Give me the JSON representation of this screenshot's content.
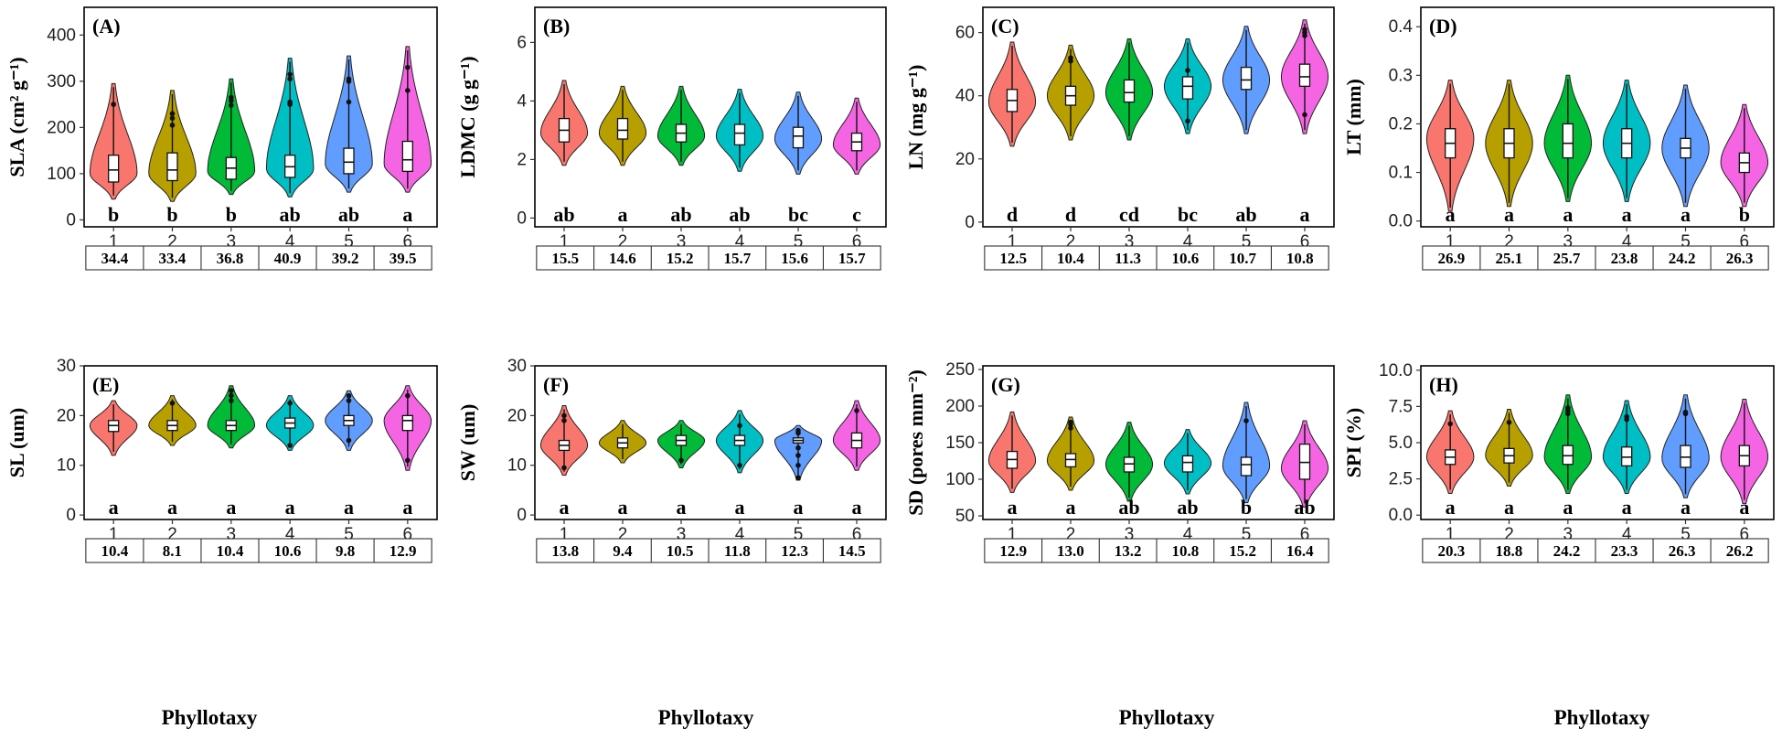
{
  "chart_data": [
    {
      "type": "violin",
      "tag": "(A)",
      "ylabel": "SLA (cm² g⁻¹)",
      "ylim": [
        -15,
        460
      ],
      "yticks": [
        0,
        100,
        200,
        300,
        400
      ],
      "xticks": [
        "1",
        "2",
        "3",
        "4",
        "5",
        "6"
      ],
      "letters": [
        "b",
        "b",
        "b",
        "ab",
        "ab",
        "a"
      ],
      "cv": [
        "34.4",
        "33.4",
        "36.8",
        "40.9",
        "39.2",
        "39.5"
      ],
      "violins": [
        {
          "min": 45,
          "max": 295,
          "median": 108,
          "q1": 82,
          "q3": 140,
          "mode": 100,
          "outliers": [
            250
          ]
        },
        {
          "min": 40,
          "max": 280,
          "median": 108,
          "q1": 85,
          "q3": 145,
          "mode": 100,
          "outliers": [
            205,
            220,
            230
          ]
        },
        {
          "min": 55,
          "max": 305,
          "median": 112,
          "q1": 88,
          "q3": 135,
          "mode": 105,
          "outliers": [
            248,
            258,
            265
          ]
        },
        {
          "min": 50,
          "max": 350,
          "median": 115,
          "q1": 92,
          "q3": 140,
          "mode": 110,
          "outliers": [
            250,
            255,
            305,
            315
          ]
        },
        {
          "min": 60,
          "max": 355,
          "median": 125,
          "q1": 100,
          "q3": 155,
          "mode": 120,
          "outliers": [
            255,
            300,
            305
          ]
        },
        {
          "min": 60,
          "max": 375,
          "median": 130,
          "q1": 105,
          "q3": 170,
          "mode": 120,
          "outliers": [
            280,
            330
          ]
        }
      ]
    },
    {
      "type": "violin",
      "tag": "(B)",
      "ylabel": "LDMC (g g⁻¹)",
      "ylim": [
        -0.3,
        7.2
      ],
      "yticks": [
        0,
        2,
        4,
        6
      ],
      "xticks": [
        "1",
        "2",
        "3",
        "4",
        "5",
        "6"
      ],
      "letters": [
        "ab",
        "a",
        "ab",
        "ab",
        "bc",
        "c"
      ],
      "cv": [
        "15.5",
        "14.6",
        "15.2",
        "15.7",
        "15.6",
        "15.7"
      ],
      "violins": [
        {
          "min": 1.8,
          "max": 4.7,
          "median": 3.0,
          "q1": 2.6,
          "q3": 3.4,
          "mode": 2.9,
          "outliers": []
        },
        {
          "min": 1.8,
          "max": 4.5,
          "median": 3.0,
          "q1": 2.7,
          "q3": 3.4,
          "mode": 2.9,
          "outliers": []
        },
        {
          "min": 1.8,
          "max": 4.5,
          "median": 2.9,
          "q1": 2.6,
          "q3": 3.2,
          "mode": 2.8,
          "outliers": []
        },
        {
          "min": 1.6,
          "max": 4.4,
          "median": 2.9,
          "q1": 2.5,
          "q3": 3.2,
          "mode": 2.8,
          "outliers": []
        },
        {
          "min": 1.5,
          "max": 4.3,
          "median": 2.8,
          "q1": 2.4,
          "q3": 3.1,
          "mode": 2.7,
          "outliers": []
        },
        {
          "min": 1.5,
          "max": 4.1,
          "median": 2.6,
          "q1": 2.3,
          "q3": 2.9,
          "mode": 2.5,
          "outliers": []
        }
      ]
    },
    {
      "type": "violin",
      "tag": "(C)",
      "ylabel": "LN (mg g⁻¹)",
      "ylim": [
        -1.5,
        68
      ],
      "yticks": [
        0,
        20,
        40,
        60
      ],
      "xticks": [
        "1",
        "2",
        "3",
        "4",
        "5",
        "6"
      ],
      "letters": [
        "d",
        "d",
        "cd",
        "bc",
        "ab",
        "a"
      ],
      "cv": [
        "12.5",
        "10.4",
        "11.3",
        "10.6",
        "10.7",
        "10.8"
      ],
      "violins": [
        {
          "min": 24,
          "max": 57,
          "median": 38.5,
          "q1": 35,
          "q3": 42,
          "mode": 38,
          "outliers": []
        },
        {
          "min": 26,
          "max": 56,
          "median": 40,
          "q1": 37,
          "q3": 43,
          "mode": 40,
          "outliers": [
            51,
            52
          ]
        },
        {
          "min": 26,
          "max": 58,
          "median": 41,
          "q1": 38,
          "q3": 45,
          "mode": 41,
          "outliers": []
        },
        {
          "min": 28,
          "max": 58,
          "median": 43,
          "q1": 39,
          "q3": 46,
          "mode": 43,
          "outliers": [
            32,
            48
          ]
        },
        {
          "min": 28,
          "max": 62,
          "median": 45,
          "q1": 42,
          "q3": 49,
          "mode": 45,
          "outliers": []
        },
        {
          "min": 28,
          "max": 64,
          "median": 46,
          "q1": 43,
          "q3": 50,
          "mode": 46,
          "outliers": [
            59,
            60,
            61,
            34
          ]
        }
      ]
    },
    {
      "type": "violin",
      "tag": "(D)",
      "ylabel": "LT (mm)",
      "ylim": [
        -0.012,
        0.44
      ],
      "yticks": [
        0.0,
        0.1,
        0.2,
        0.3,
        0.4
      ],
      "ytick_labels": [
        "0.0",
        "0.1",
        "0.2",
        "0.3",
        "0.4"
      ],
      "xticks": [
        "1",
        "2",
        "3",
        "4",
        "5",
        "6"
      ],
      "letters": [
        "a",
        "a",
        "a",
        "a",
        "a",
        "b"
      ],
      "cv": [
        "26.9",
        "25.1",
        "25.7",
        "23.8",
        "24.2",
        "26.3"
      ],
      "violins": [
        {
          "min": 0.02,
          "max": 0.29,
          "median": 0.16,
          "q1": 0.13,
          "q3": 0.19,
          "mode": 0.17,
          "outliers": []
        },
        {
          "min": 0.03,
          "max": 0.29,
          "median": 0.16,
          "q1": 0.13,
          "q3": 0.19,
          "mode": 0.16,
          "outliers": []
        },
        {
          "min": 0.04,
          "max": 0.3,
          "median": 0.16,
          "q1": 0.13,
          "q3": 0.2,
          "mode": 0.16,
          "outliers": []
        },
        {
          "min": 0.04,
          "max": 0.29,
          "median": 0.16,
          "q1": 0.13,
          "q3": 0.19,
          "mode": 0.16,
          "outliers": []
        },
        {
          "min": 0.03,
          "max": 0.28,
          "median": 0.15,
          "q1": 0.13,
          "q3": 0.17,
          "mode": 0.15,
          "outliers": []
        },
        {
          "min": 0.03,
          "max": 0.24,
          "median": 0.12,
          "q1": 0.1,
          "q3": 0.14,
          "mode": 0.12,
          "outliers": []
        }
      ]
    },
    {
      "type": "violin",
      "tag": "(E)",
      "ylabel": "SL (um)",
      "ylim": [
        -0.9,
        30
      ],
      "yticks": [
        0,
        10,
        20,
        30
      ],
      "xticks": [
        "1",
        "2",
        "3",
        "4",
        "5",
        "6"
      ],
      "letters": [
        "a",
        "a",
        "a",
        "a",
        "a",
        "a"
      ],
      "cv": [
        "10.4",
        "8.1",
        "10.4",
        "10.6",
        "9.8",
        "12.9"
      ],
      "violins": [
        {
          "min": 12,
          "max": 23,
          "median": 18,
          "q1": 16.8,
          "q3": 19,
          "mode": 18,
          "outliers": []
        },
        {
          "min": 14,
          "max": 24,
          "median": 18,
          "q1": 17,
          "q3": 19,
          "mode": 18,
          "outliers": [
            22.5
          ]
        },
        {
          "min": 13.5,
          "max": 26,
          "median": 18,
          "q1": 17,
          "q3": 19,
          "mode": 18,
          "outliers": [
            23,
            24,
            25
          ]
        },
        {
          "min": 13,
          "max": 24,
          "median": 18.5,
          "q1": 17.5,
          "q3": 19.5,
          "mode": 18,
          "outliers": [
            14,
            22.5
          ]
        },
        {
          "min": 13,
          "max": 25,
          "median": 19,
          "q1": 18,
          "q3": 20,
          "mode": 19,
          "outliers": [
            15,
            23,
            24
          ]
        },
        {
          "min": 9,
          "max": 26,
          "median": 19,
          "q1": 17,
          "q3": 20,
          "mode": 19,
          "outliers": [
            11,
            24
          ]
        }
      ]
    },
    {
      "type": "violin",
      "tag": "(F)",
      "ylabel": "SW (um)",
      "ylim": [
        -0.9,
        30
      ],
      "yticks": [
        0,
        10,
        20,
        30
      ],
      "xticks": [
        "1",
        "2",
        "3",
        "4",
        "5",
        "6"
      ],
      "letters": [
        "a",
        "a",
        "a",
        "a",
        "a",
        "a"
      ],
      "cv": [
        "13.8",
        "9.4",
        "10.5",
        "11.8",
        "12.3",
        "14.5"
      ],
      "violins": [
        {
          "min": 8,
          "max": 22,
          "median": 14,
          "q1": 13,
          "q3": 15,
          "mode": 14,
          "outliers": [
            9.5,
            19,
            20
          ]
        },
        {
          "min": 10.5,
          "max": 19,
          "median": 14.5,
          "q1": 13.5,
          "q3": 15.5,
          "mode": 14.5,
          "outliers": []
        },
        {
          "min": 9.5,
          "max": 19,
          "median": 15,
          "q1": 14,
          "q3": 16,
          "mode": 15,
          "outliers": [
            11
          ]
        },
        {
          "min": 8.5,
          "max": 21,
          "median": 15,
          "q1": 14,
          "q3": 16,
          "mode": 15,
          "outliers": [
            10,
            18
          ]
        },
        {
          "min": 7,
          "max": 18,
          "median": 15,
          "q1": 14.5,
          "q3": 15.5,
          "mode": 15,
          "outliers": [
            7.5,
            10,
            12,
            13.5,
            16.5,
            17
          ]
        },
        {
          "min": 9,
          "max": 23,
          "median": 15,
          "q1": 13.5,
          "q3": 16.5,
          "mode": 15,
          "outliers": [
            21
          ]
        }
      ]
    },
    {
      "type": "violin",
      "tag": "(G)",
      "ylabel": "SD (pores mm⁻²)",
      "ylim": [
        45,
        255
      ],
      "yticks": [
        50,
        100,
        150,
        200,
        250
      ],
      "xticks": [
        "1",
        "2",
        "3",
        "4",
        "5",
        "6"
      ],
      "letters": [
        "a",
        "a",
        "ab",
        "ab",
        "b",
        "ab"
      ],
      "cv": [
        "12.9",
        "13.0",
        "13.2",
        "10.8",
        "15.2",
        "16.4"
      ],
      "violins": [
        {
          "min": 82,
          "max": 192,
          "median": 127,
          "q1": 115,
          "q3": 138,
          "mode": 125,
          "outliers": []
        },
        {
          "min": 85,
          "max": 185,
          "median": 127,
          "q1": 117,
          "q3": 135,
          "mode": 125,
          "outliers": [
            170,
            175,
            178
          ]
        },
        {
          "min": 70,
          "max": 178,
          "median": 121,
          "q1": 110,
          "q3": 130,
          "mode": 120,
          "outliers": []
        },
        {
          "min": 80,
          "max": 168,
          "median": 123,
          "q1": 110,
          "q3": 132,
          "mode": 122,
          "outliers": []
        },
        {
          "min": 68,
          "max": 205,
          "median": 120,
          "q1": 105,
          "q3": 130,
          "mode": 118,
          "outliers": [
            180
          ]
        },
        {
          "min": 62,
          "max": 180,
          "median": 123,
          "q1": 100,
          "q3": 148,
          "mode": 115,
          "outliers": []
        }
      ]
    },
    {
      "type": "violin",
      "tag": "(H)",
      "ylabel": "SPI (%)",
      "ylim": [
        -0.3,
        10.3
      ],
      "yticks": [
        0,
        2.5,
        5,
        7.5,
        10
      ],
      "ytick_labels": [
        "0.0",
        "2.5",
        "5.0",
        "7.5",
        "10.0"
      ],
      "xticks": [
        "1",
        "2",
        "3",
        "4",
        "5",
        "6"
      ],
      "letters": [
        "a",
        "a",
        "a",
        "a",
        "a",
        "a"
      ],
      "cv": [
        "20.3",
        "18.8",
        "24.2",
        "23.3",
        "26.3",
        "26.2"
      ],
      "violins": [
        {
          "min": 1.5,
          "max": 7.2,
          "median": 4.0,
          "q1": 3.5,
          "q3": 4.5,
          "mode": 4.0,
          "outliers": [
            6.3
          ]
        },
        {
          "min": 2.0,
          "max": 7.3,
          "median": 4.1,
          "q1": 3.6,
          "q3": 4.6,
          "mode": 4.1,
          "outliers": [
            6.4
          ]
        },
        {
          "min": 1.5,
          "max": 8.3,
          "median": 4.1,
          "q1": 3.5,
          "q3": 4.8,
          "mode": 4.0,
          "outliers": [
            7.0,
            7.2,
            7.4
          ]
        },
        {
          "min": 1.5,
          "max": 7.9,
          "median": 4.0,
          "q1": 3.4,
          "q3": 4.7,
          "mode": 4.0,
          "outliers": [
            6.6,
            6.8
          ]
        },
        {
          "min": 1.2,
          "max": 8.3,
          "median": 4.0,
          "q1": 3.3,
          "q3": 4.8,
          "mode": 3.9,
          "outliers": [
            7.0,
            7.1
          ]
        },
        {
          "min": 0.8,
          "max": 8.0,
          "median": 4.1,
          "q1": 3.4,
          "q3": 4.8,
          "mode": 4.0,
          "outliers": []
        }
      ]
    }
  ],
  "colors": [
    "#F8766D",
    "#B79F00",
    "#00BA38",
    "#00BFC4",
    "#619CFF",
    "#F564E3"
  ],
  "xlabel": "Phyllotaxy"
}
